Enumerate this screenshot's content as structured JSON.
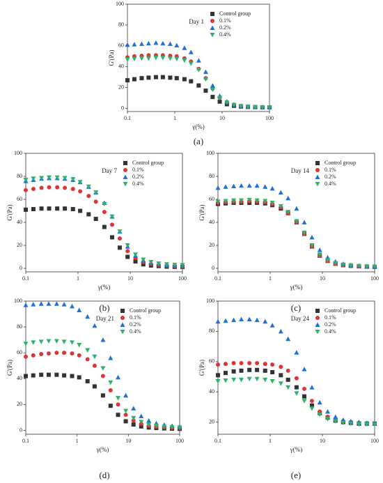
{
  "chart_data": [
    {
      "type": "scatter",
      "annotation": "Day 1",
      "panel_label": "(a)",
      "xlabel": "γ(%)",
      "ylabel": "G'(Pa)",
      "xscale": "log",
      "xlim": [
        0.1,
        100
      ],
      "xticks": [
        0.1,
        1,
        10,
        100
      ],
      "ylim": [
        -3,
        100
      ],
      "yticks": [
        0,
        20,
        40,
        60,
        80,
        100
      ],
      "x": [
        0.1,
        0.14,
        0.2,
        0.28,
        0.4,
        0.56,
        0.8,
        1.1,
        1.6,
        2.2,
        3.2,
        4.5,
        6.3,
        8.9,
        12.6,
        17.8,
        25,
        35,
        50,
        71,
        100
      ],
      "series": [
        {
          "name": "Control group",
          "color": "#333333",
          "marker": "square",
          "values": [
            27,
            28,
            29,
            29.5,
            30,
            30,
            29.5,
            29,
            28,
            26,
            22,
            17,
            11,
            6.5,
            4,
            2.5,
            1.8,
            1.4,
            1.2,
            1,
            1
          ]
        },
        {
          "name": "0.1%",
          "color": "#e03333",
          "marker": "circle",
          "values": [
            49,
            50,
            50.5,
            51,
            51,
            51,
            50.5,
            50,
            48,
            45,
            38,
            29,
            19,
            10.5,
            6,
            3.5,
            2.3,
            1.7,
            1.3,
            1.1,
            1
          ]
        },
        {
          "name": "0.2%",
          "color": "#2070d8",
          "marker": "triangle-up",
          "values": [
            61,
            61.5,
            62,
            62.5,
            63,
            62.5,
            62,
            60.5,
            58,
            54,
            46,
            35,
            22,
            12,
            6.5,
            3.8,
            2.5,
            1.8,
            1.4,
            1.2,
            1
          ]
        },
        {
          "name": "0.4%",
          "color": "#2eb36b",
          "marker": "triangle-down",
          "values": [
            47,
            47.5,
            48,
            48,
            48.5,
            48.5,
            48,
            47.5,
            46,
            43,
            37,
            28,
            18,
            10,
            5.5,
            3.3,
            2.2,
            1.6,
            1.3,
            1.1,
            1
          ]
        }
      ]
    },
    {
      "type": "scatter",
      "annotation": "Day 7",
      "panel_label": "(b)",
      "xlabel": "γ(%)",
      "ylabel": "G'(Pa)",
      "xscale": "log",
      "xlim": [
        0.1,
        100
      ],
      "xticks": [
        0.1,
        1,
        10,
        100
      ],
      "ylim": [
        -3,
        100
      ],
      "yticks": [
        0,
        20,
        40,
        60,
        80,
        100
      ],
      "x": [
        0.1,
        0.14,
        0.2,
        0.28,
        0.4,
        0.56,
        0.8,
        1.1,
        1.6,
        2.2,
        3.2,
        4.5,
        6.3,
        8.9,
        12.6,
        17.8,
        25,
        35,
        50,
        71,
        100
      ],
      "series": [
        {
          "name": "Control group",
          "color": "#333333",
          "marker": "square",
          "values": [
            51,
            51.5,
            52,
            52,
            52,
            52,
            51.5,
            50,
            47,
            43,
            36,
            27,
            18,
            10,
            6,
            3.5,
            2.5,
            2,
            1.5,
            1.3,
            1.2
          ]
        },
        {
          "name": "0.1%",
          "color": "#e03333",
          "marker": "circle",
          "values": [
            68,
            69,
            70,
            70.5,
            70.5,
            70,
            69,
            67,
            63,
            58,
            49,
            38,
            26,
            15,
            9,
            5.5,
            3.8,
            2.8,
            2.2,
            1.8,
            1.5
          ]
        },
        {
          "name": "0.2%",
          "color": "#2070d8",
          "marker": "triangle-up",
          "values": [
            76,
            77,
            78,
            78.5,
            78.5,
            78,
            77,
            75,
            71,
            66,
            57,
            45,
            32,
            19,
            11,
            7,
            5,
            3.8,
            3,
            2.5,
            2.2
          ]
        },
        {
          "name": "0.4%",
          "color": "#2eb36b",
          "marker": "triangle-down",
          "values": [
            77,
            78,
            78.5,
            79,
            79,
            78.5,
            77.5,
            75,
            71,
            66,
            56,
            45,
            32,
            20,
            12,
            7.5,
            5.5,
            4.2,
            3.5,
            3,
            2.8
          ]
        }
      ]
    },
    {
      "type": "scatter",
      "annotation": "Day 14",
      "panel_label": "(c)",
      "xlabel": "γ(%)",
      "ylabel": "G'(Pa)",
      "xscale": "log",
      "xlim": [
        0.1,
        100
      ],
      "xticks": [
        0.1,
        1,
        10,
        100
      ],
      "ylim": [
        -3,
        100
      ],
      "yticks": [
        0,
        20,
        40,
        60,
        80,
        100
      ],
      "x": [
        0.1,
        0.14,
        0.2,
        0.28,
        0.4,
        0.56,
        0.8,
        1.1,
        1.6,
        2.2,
        3.2,
        4.5,
        6.3,
        8.9,
        12.6,
        17.8,
        25,
        35,
        50,
        71,
        100
      ],
      "series": [
        {
          "name": "Control group",
          "color": "#333333",
          "marker": "square",
          "values": [
            56,
            56.5,
            57,
            57,
            57,
            57,
            56.5,
            55,
            52,
            48,
            40,
            30,
            19,
            11,
            6.5,
            4,
            2.8,
            2.2,
            1.8,
            1.5,
            1.3
          ]
        },
        {
          "name": "0.1%",
          "color": "#e03333",
          "marker": "circle",
          "values": [
            57,
            57.5,
            58,
            58,
            58.5,
            58,
            57.5,
            56,
            53,
            48,
            40,
            30,
            19,
            11,
            6.5,
            4,
            2.8,
            2.2,
            1.8,
            1.5,
            1.3
          ]
        },
        {
          "name": "0.2%",
          "color": "#2070d8",
          "marker": "triangle-up",
          "values": [
            70,
            71,
            71.5,
            72,
            72,
            72,
            71,
            69.5,
            66,
            61,
            52,
            40,
            27,
            16,
            9.5,
            6,
            4,
            3,
            2.4,
            2,
            1.8
          ]
        },
        {
          "name": "0.4%",
          "color": "#2eb36b",
          "marker": "triangle-down",
          "values": [
            58,
            58.5,
            59,
            59,
            59.5,
            59,
            58.5,
            57,
            54,
            49,
            41,
            31,
            20,
            12,
            7,
            4.5,
            3.2,
            2.5,
            2,
            1.7,
            1.5
          ]
        }
      ]
    },
    {
      "type": "scatter",
      "annotation": "Day 21",
      "panel_label": "(d)",
      "xlabel": "γ(%)",
      "ylabel": "G'(Pa)",
      "xscale": "log",
      "xlim": [
        0.1,
        100
      ],
      "xticks": [
        0.1,
        1,
        10,
        100
      ],
      "ylim": [
        -3,
        100
      ],
      "yticks": [
        0,
        20,
        40,
        60,
        80,
        100
      ],
      "x": [
        0.1,
        0.14,
        0.2,
        0.28,
        0.4,
        0.56,
        0.8,
        1.1,
        1.6,
        2.2,
        3.2,
        4.5,
        6.3,
        8.9,
        12.6,
        17.8,
        25,
        35,
        50,
        71,
        100
      ],
      "series": [
        {
          "name": "Control group",
          "color": "#333333",
          "marker": "square",
          "values": [
            42,
            42.5,
            43,
            43,
            43,
            42.5,
            42,
            41,
            38,
            34,
            27,
            19,
            12,
            7,
            4.5,
            3,
            2.2,
            1.8,
            1.5,
            1.3,
            1.2
          ]
        },
        {
          "name": "0.1%",
          "color": "#e03333",
          "marker": "circle",
          "values": [
            57,
            58,
            59,
            59.5,
            60,
            60,
            59.5,
            58,
            55,
            50,
            42,
            31,
            20,
            12,
            7.5,
            5,
            3.5,
            2.8,
            2.3,
            2,
            1.8
          ]
        },
        {
          "name": "0.2%",
          "color": "#2070d8",
          "marker": "triangle-up",
          "values": [
            97,
            97.5,
            98,
            98,
            98,
            97.5,
            96,
            93,
            88,
            81,
            70,
            56,
            41,
            27,
            17,
            11,
            7.5,
            5.5,
            4.3,
            3.5,
            3
          ]
        },
        {
          "name": "0.4%",
          "color": "#2eb36b",
          "marker": "triangle-down",
          "values": [
            67,
            68,
            68.5,
            69,
            69,
            68.5,
            68,
            66,
            62,
            57,
            48,
            37,
            25,
            15,
            9.5,
            6.5,
            4.5,
            3.5,
            2.8,
            2.4,
            2.2
          ]
        }
      ]
    },
    {
      "type": "scatter",
      "annotation": "Day 24",
      "panel_label": "(e)",
      "xlabel": "γ(%)",
      "ylabel": "G'(Pa)",
      "xscale": "log",
      "xlim": [
        0.1,
        100
      ],
      "xticks": [
        0.1,
        1,
        10,
        100
      ],
      "ylim": [
        12,
        100
      ],
      "yticks": [
        20,
        40,
        60,
        80,
        100
      ],
      "x": [
        0.1,
        0.14,
        0.2,
        0.28,
        0.4,
        0.56,
        0.8,
        1.1,
        1.6,
        2.2,
        3.2,
        4.5,
        6.3,
        8.9,
        12.6,
        17.8,
        25,
        35,
        50,
        71,
        100
      ],
      "series": [
        {
          "name": "Control group",
          "color": "#333333",
          "marker": "square",
          "values": [
            51,
            52.5,
            53.5,
            54,
            54.5,
            54.5,
            54,
            53,
            51,
            48,
            43,
            37,
            31,
            26,
            23,
            21,
            20,
            19.5,
            19,
            19,
            19
          ]
        },
        {
          "name": "0.1%",
          "color": "#e03333",
          "marker": "circle",
          "values": [
            58,
            58.5,
            59,
            59,
            59,
            59,
            58.5,
            58,
            56.5,
            54,
            49,
            42,
            34,
            27,
            23.5,
            21.5,
            20.5,
            20,
            19.5,
            19,
            19
          ]
        },
        {
          "name": "0.2%",
          "color": "#2070d8",
          "marker": "triangle-up",
          "values": [
            86.5,
            87,
            87.5,
            88,
            88,
            87.5,
            86.5,
            84,
            80,
            75,
            66,
            55,
            43,
            33,
            27,
            23.5,
            21.5,
            20.5,
            20,
            19.5,
            19
          ]
        },
        {
          "name": "0.4%",
          "color": "#2eb36b",
          "marker": "triangle-down",
          "values": [
            47,
            47.5,
            48,
            48,
            48.5,
            48.5,
            48,
            47,
            45.5,
            43,
            39,
            34,
            29,
            25,
            22,
            20.5,
            19.5,
            19,
            18.5,
            18.5,
            18.5
          ]
        }
      ]
    }
  ]
}
